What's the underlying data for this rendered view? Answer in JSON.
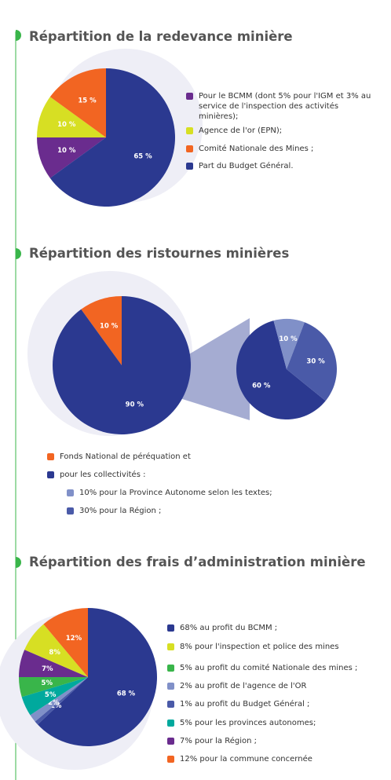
{
  "chart_data": [
    {
      "type": "pie",
      "title": "Répartition de la redevance minière",
      "categories": [
        "Pour le BCMM (dont 5%  pour l'IGM et 3% au service de l'inspection des activités minières);",
        "Agence de l'or  (EPN);",
        "Comité Nationale des Mines ;",
        "Part du Budget Général."
      ],
      "values": [
        10,
        10,
        15,
        65
      ],
      "value_labels": [
        "10 %",
        "10 %",
        "15 %",
        "65 %"
      ],
      "colors": [
        "#6a2c8e",
        "#d7df23",
        "#f26522",
        "#2b3990"
      ]
    },
    {
      "type": "pie",
      "title": "Répartition des ristournes minières",
      "categories": [
        "Fonds National de péréquation et",
        "pour les collectivités :"
      ],
      "values": [
        10,
        90
      ],
      "value_labels": [
        "10 %",
        "90 %"
      ],
      "colors": [
        "#f26522",
        "#2b3990"
      ],
      "breakdown": {
        "categories": [
          null,
          "10% pour la Province Autonome selon les textes;",
          "30% pour la Région ;"
        ],
        "values": [
          60,
          10,
          30
        ],
        "value_labels": [
          "60 %",
          "10 %",
          "30 %"
        ],
        "colors": [
          "#2b3990",
          "#8090c8",
          "#4a5aa8"
        ]
      }
    },
    {
      "type": "pie",
      "title": "Répartition des frais d’administration minière",
      "categories": [
        "68% au profit du BCMM ;",
        "8% pour l'inspection et police des mines",
        "5% au profit du comité Nationale des mines ;",
        "2% au profit de l'agence de l'OR",
        "1% au profit du Budget Général ;",
        "5% pour les provinces autonomes;",
        "7% pour la Région ;",
        "12% pour la commune concernée"
      ],
      "values": [
        68,
        8,
        5,
        2,
        1,
        5,
        7,
        12
      ],
      "value_labels": [
        "68 %",
        "8%",
        "5%",
        "2%",
        "1%",
        "5%",
        "7%",
        "12%"
      ],
      "colors": [
        "#2b3990",
        "#d7df23",
        "#39b54a",
        "#8090c8",
        "#4a5aa8",
        "#00a99d",
        "#6a2c8e",
        "#f26522"
      ]
    }
  ]
}
